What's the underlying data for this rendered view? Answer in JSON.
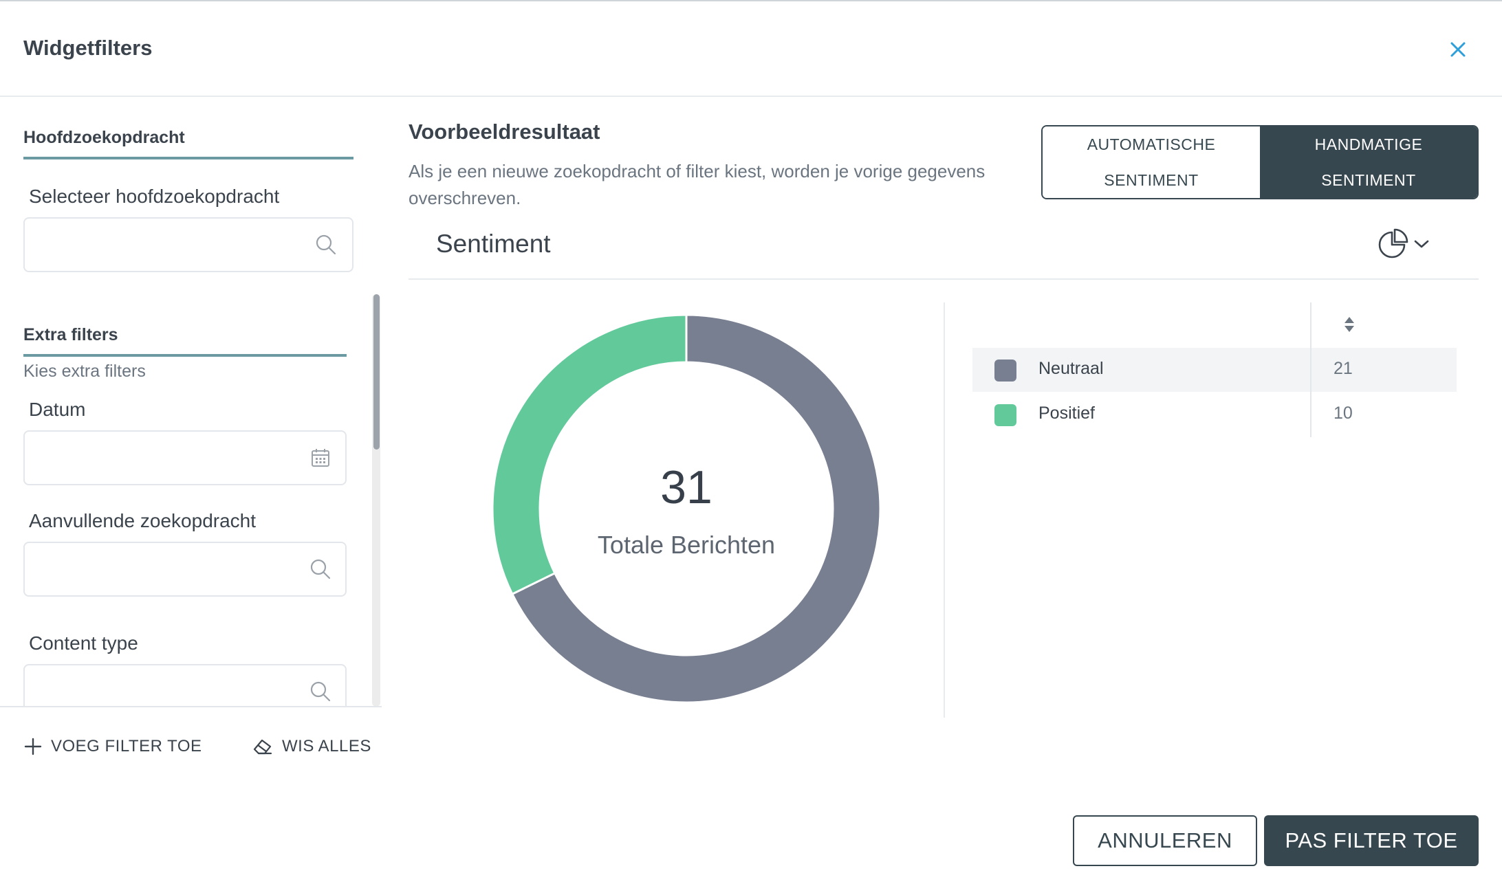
{
  "dialog": {
    "title": "Widgetfilters",
    "close_icon": "close-icon"
  },
  "left_panel": {
    "main_query": {
      "section_title": "Hoofdzoekopdracht",
      "field_label": "Selecteer hoofdzoekopdracht",
      "value": "",
      "icon": "search-icon"
    },
    "extra_filters": {
      "section_title": "Extra filters",
      "subtitle": "Kies extra filters",
      "fields": [
        {
          "label": "Datum",
          "value": "",
          "icon": "calendar-icon"
        },
        {
          "label": "Aanvullende zoekopdracht",
          "value": "",
          "icon": "search-icon"
        },
        {
          "label": "Content type",
          "value": "",
          "icon": "search-icon"
        }
      ]
    },
    "add_filter_label": "VOEG FILTER TOE",
    "clear_all_label": "WIS ALLES"
  },
  "preview": {
    "title": "Voorbeeldresultaat",
    "description": "Als je een nieuwe zoekopdracht of filter kiest, worden je vorige gegevens overschreven.",
    "toggle": {
      "options": [
        {
          "line1": "AUTOMATISCHE",
          "line2": "SENTIMENT",
          "active": false
        },
        {
          "line1": "HANDMATIGE",
          "line2": "SENTIMENT",
          "active": true
        }
      ]
    },
    "widget_title": "Sentiment",
    "chart_type_icon": "pie-chart-icon",
    "total_number": "31",
    "total_label": "Totale Berichten"
  },
  "chart_data": {
    "type": "pie",
    "donut": true,
    "categories": [
      "Neutraal",
      "Positief"
    ],
    "values": [
      21,
      10
    ],
    "colors": [
      "#787f91",
      "#62c99b"
    ],
    "total": 31
  },
  "legend": {
    "rows": [
      {
        "name": "Neutraal",
        "value": "21",
        "color": "#787f91"
      },
      {
        "name": "Positief",
        "value": "10",
        "color": "#62c99b"
      }
    ]
  },
  "footer": {
    "cancel_label": "ANNULEREN",
    "apply_label": "PAS FILTER TOE"
  },
  "colors": {
    "primary_dark": "#37474f",
    "accent_underline": "#6b9aa3",
    "close_icon": "#2e9fd8"
  }
}
